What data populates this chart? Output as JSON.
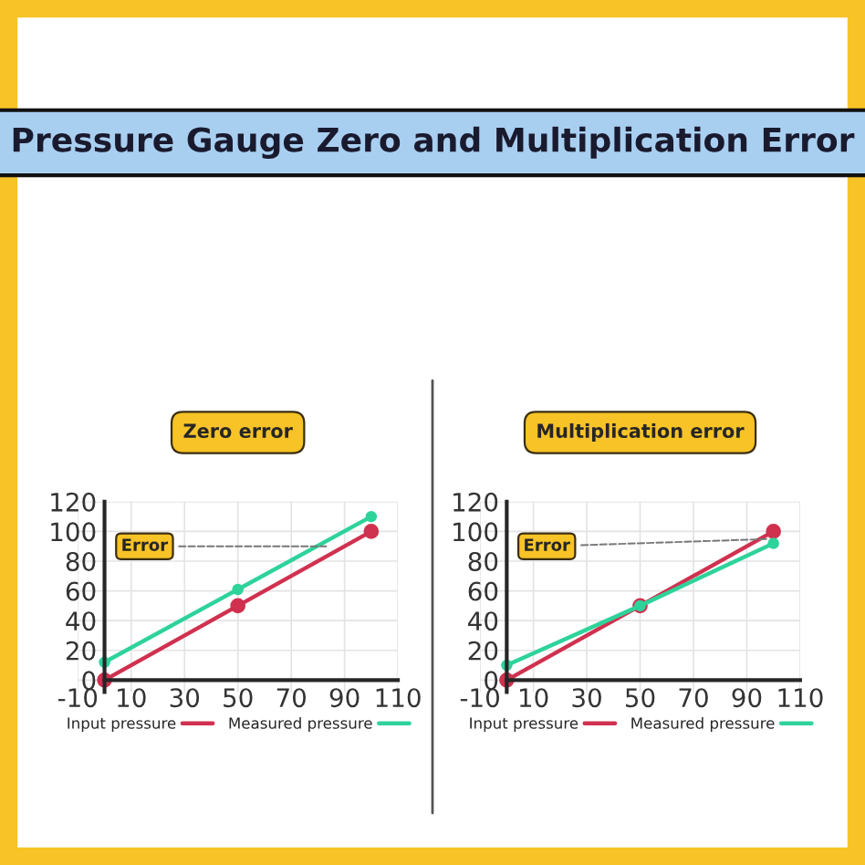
{
  "chart_data": [
    {
      "type": "line",
      "title": "Zero error",
      "annotations": [
        "Pressure Gauge Zero and Multiplication Error",
        {
          "text": "Error",
          "x": 85,
          "y": 90
        }
      ],
      "x": [
        0,
        50,
        100
      ],
      "series": [
        {
          "name": "Input pressure",
          "color": "#d0314f",
          "values": [
            0,
            50,
            100
          ]
        },
        {
          "name": "Measured pressure",
          "color": "#2ed39a",
          "values": [
            12,
            61,
            110
          ]
        }
      ],
      "xlim": [
        -10,
        110
      ],
      "xticks": [
        -10,
        10,
        30,
        50,
        70,
        90,
        110
      ],
      "ylim": [
        -8,
        120
      ],
      "yticks": [
        0,
        20,
        40,
        60,
        80,
        100,
        120
      ],
      "grid": true,
      "legend": "bottom",
      "marker": "circle",
      "line_style": "solid"
    },
    {
      "type": "line",
      "title": "Multiplication error",
      "annotations": [
        {
          "text": "Error",
          "x": 100,
          "y": 95
        }
      ],
      "x": [
        0,
        50,
        100
      ],
      "series": [
        {
          "name": "Input pressure",
          "color": "#d0314f",
          "values": [
            0,
            50,
            100
          ]
        },
        {
          "name": "Measured pressure",
          "color": "#2ed39a",
          "values": [
            10,
            50,
            92
          ]
        }
      ],
      "xlim": [
        -10,
        110
      ],
      "xticks": [
        -10,
        10,
        30,
        50,
        70,
        90,
        110
      ],
      "ylim": [
        -8,
        120
      ],
      "yticks": [
        0,
        20,
        40,
        60,
        80,
        100,
        120
      ],
      "grid": true,
      "legend": "bottom",
      "marker": "circle",
      "line_style": "solid"
    }
  ]
}
